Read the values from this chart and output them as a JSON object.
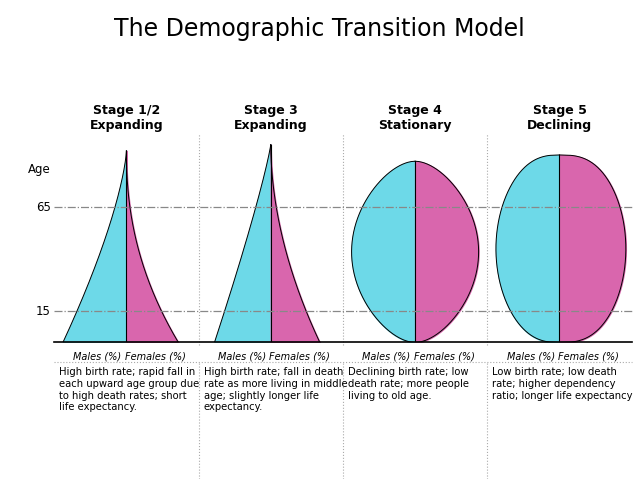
{
  "title": "The Demographic Transition Model",
  "stages": [
    {
      "label": "Stage 1/2\nExpanding",
      "description": "High birth rate; rapid fall in\neach upward age group due\nto high death rates; short\nlife expectancy."
    },
    {
      "label": "Stage 3\nExpanding",
      "description": "High birth rate; fall in death\nrate as more living in middle\nage; slightly longer life\nexpectancy."
    },
    {
      "label": "Stage 4\nStationary",
      "description": "Declining birth rate; low\ndeath rate; more people\nliving to old age."
    },
    {
      "label": "Stage 5\nDeclining",
      "description": "Low birth rate; low death\nrate; higher dependency\nratio; longer life expectancy"
    }
  ],
  "color_male": "#6DD9E8",
  "color_female": "#D966AD",
  "color_bg": "#FFFFFF",
  "color_line": "#888888",
  "age_label": "Age",
  "xlabel_male": "Males (%)",
  "xlabel_female": "Females (%)"
}
